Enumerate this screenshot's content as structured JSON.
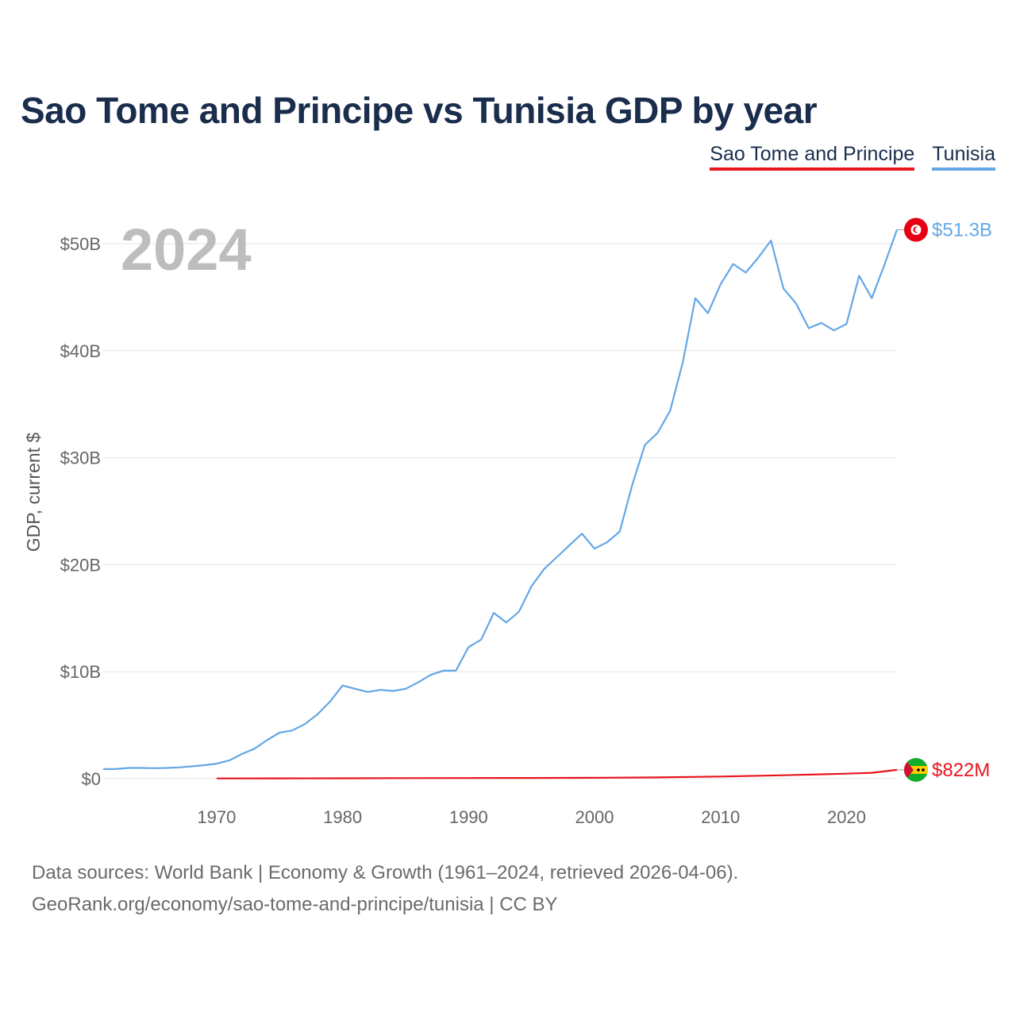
{
  "title": "Sao Tome and Principe vs Tunisia GDP by year",
  "legend": [
    {
      "label": "Sao Tome and Principe",
      "color": "#e8141c"
    },
    {
      "label": "Tunisia",
      "color": "#63a7e6"
    }
  ],
  "source_line1": "Data sources: World Bank | Economy & Growth (1961–2024, retrieved 2026-04-06).",
  "source_line2": "GeoRank.org/economy/sao-tome-and-principe/tunisia | CC BY",
  "chart_data": {
    "type": "line",
    "title": "Sao Tome and Principe vs Tunisia GDP by year",
    "ylabel": "GDP, current $",
    "xlabel": "",
    "year_label": "2024",
    "xlim": [
      1961,
      2024
    ],
    "ylim": [
      0,
      52
    ],
    "y_unit": "billions of current US$",
    "x_ticks": [
      1970,
      1980,
      1990,
      2000,
      2010,
      2020
    ],
    "y_ticks": [
      {
        "value": 0,
        "label": "$0"
      },
      {
        "value": 10,
        "label": "$10B"
      },
      {
        "value": 20,
        "label": "$20B"
      },
      {
        "value": 30,
        "label": "$30B"
      },
      {
        "value": 40,
        "label": "$40B"
      },
      {
        "value": 50,
        "label": "$50B"
      }
    ],
    "series": [
      {
        "name": "Tunisia",
        "color": "#63a7e6",
        "end_label": "$51.3B",
        "x": [
          1961,
          1962,
          1963,
          1964,
          1965,
          1966,
          1967,
          1968,
          1969,
          1970,
          1971,
          1972,
          1973,
          1974,
          1975,
          1976,
          1977,
          1978,
          1979,
          1980,
          1981,
          1982,
          1983,
          1984,
          1985,
          1986,
          1987,
          1988,
          1989,
          1990,
          1991,
          1992,
          1993,
          1994,
          1995,
          1996,
          1997,
          1998,
          1999,
          2000,
          2001,
          2002,
          2003,
          2004,
          2005,
          2006,
          2007,
          2008,
          2009,
          2010,
          2011,
          2012,
          2013,
          2014,
          2015,
          2016,
          2017,
          2018,
          2019,
          2020,
          2021,
          2022,
          2023,
          2024
        ],
        "values": [
          0.9,
          0.9,
          1.0,
          1.0,
          0.98,
          1.0,
          1.05,
          1.15,
          1.25,
          1.4,
          1.7,
          2.3,
          2.8,
          3.6,
          4.3,
          4.5,
          5.1,
          6.0,
          7.2,
          8.7,
          8.4,
          8.1,
          8.3,
          8.2,
          8.4,
          9.0,
          9.7,
          10.1,
          10.1,
          12.3,
          13.0,
          15.5,
          14.6,
          15.6,
          18.0,
          19.6,
          20.7,
          21.8,
          22.9,
          21.5,
          22.1,
          23.1,
          27.5,
          31.2,
          32.3,
          34.4,
          38.9,
          44.9,
          43.5,
          46.2,
          48.1,
          47.3,
          48.7,
          50.3,
          45.8,
          44.4,
          42.1,
          42.6,
          41.9,
          42.5,
          47.0,
          44.9,
          48.0,
          51.3
        ]
      },
      {
        "name": "Sao Tome and Principe",
        "color": "#e8141c",
        "end_label": "$822M",
        "x": [
          1970,
          1975,
          1980,
          1985,
          1990,
          1995,
          2000,
          2005,
          2010,
          2015,
          2018,
          2020,
          2022,
          2024
        ],
        "values": [
          0.02,
          0.03,
          0.04,
          0.05,
          0.06,
          0.07,
          0.08,
          0.12,
          0.2,
          0.32,
          0.41,
          0.47,
          0.55,
          0.82
        ]
      }
    ]
  }
}
